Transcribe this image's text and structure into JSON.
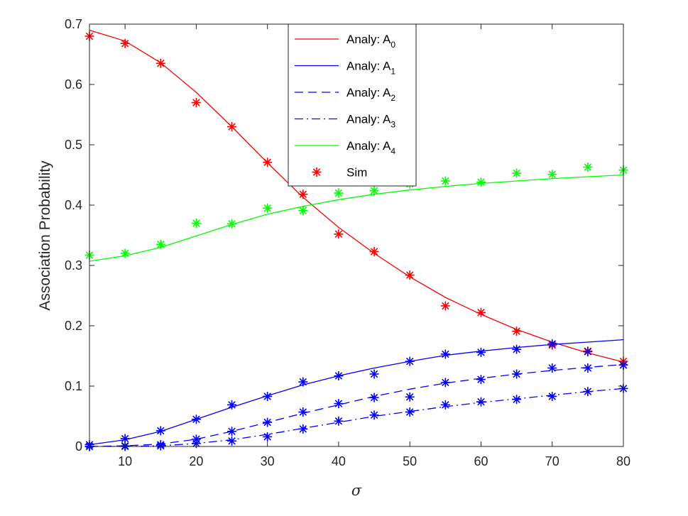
{
  "chart_data": {
    "type": "line",
    "xlabel": "σ",
    "ylabel": "Association Probability",
    "xlim": [
      5,
      80
    ],
    "ylim": [
      0,
      0.7
    ],
    "xticks": [
      10,
      20,
      30,
      40,
      50,
      60,
      70,
      80
    ],
    "yticks": [
      0,
      0.1,
      0.2,
      0.3,
      0.4,
      0.5,
      0.6,
      0.7
    ],
    "grid": false,
    "legend_position": "top-center",
    "x": [
      5,
      10,
      15,
      20,
      25,
      30,
      35,
      40,
      45,
      50,
      55,
      60,
      65,
      70,
      75,
      80
    ],
    "series": [
      {
        "name": "Analy: A",
        "sub": "0",
        "color": "#ff0000",
        "dash": "solid",
        "values": [
          0.69,
          0.672,
          0.636,
          0.587,
          0.53,
          0.47,
          0.413,
          0.363,
          0.32,
          0.281,
          0.247,
          0.219,
          0.194,
          0.173,
          0.155,
          0.14
        ]
      },
      {
        "name": "Analy: A",
        "sub": "1",
        "color": "#0000ff",
        "dash": "solid",
        "values": [
          0.003,
          0.011,
          0.025,
          0.045,
          0.065,
          0.084,
          0.102,
          0.117,
          0.13,
          0.141,
          0.151,
          0.158,
          0.164,
          0.169,
          0.173,
          0.177
        ]
      },
      {
        "name": "Analy: A",
        "sub": "2",
        "color": "#0000ff",
        "dash": "dashed",
        "values": [
          0.0,
          0.001,
          0.004,
          0.012,
          0.025,
          0.04,
          0.055,
          0.069,
          0.083,
          0.095,
          0.105,
          0.113,
          0.12,
          0.126,
          0.131,
          0.136
        ]
      },
      {
        "name": "Analy: A",
        "sub": "3",
        "color": "#0000ff",
        "dash": "dashdot",
        "values": [
          0.0,
          0.0,
          0.001,
          0.005,
          0.011,
          0.02,
          0.03,
          0.04,
          0.05,
          0.058,
          0.066,
          0.073,
          0.079,
          0.085,
          0.091,
          0.096
        ]
      },
      {
        "name": "Analy: A",
        "sub": "4",
        "color": "#00ff00",
        "dash": "solid",
        "values": [
          0.307,
          0.316,
          0.33,
          0.349,
          0.368,
          0.385,
          0.398,
          0.409,
          0.418,
          0.425,
          0.431,
          0.436,
          0.44,
          0.444,
          0.447,
          0.45
        ]
      }
    ],
    "sim": [
      {
        "color": "#ff0000",
        "values": [
          0.68,
          0.668,
          0.635,
          0.57,
          0.53,
          0.471,
          0.418,
          0.352,
          0.323,
          0.284,
          0.233,
          0.222,
          0.191,
          0.168,
          0.158,
          0.141
        ]
      },
      {
        "color": "#0000ff",
        "values": [
          0.003,
          0.013,
          0.026,
          0.045,
          0.069,
          0.083,
          0.107,
          0.117,
          0.12,
          0.141,
          0.153,
          0.156,
          0.161,
          0.17,
          0.157,
          0.135
        ]
      },
      {
        "color": "#0000ff",
        "values": [
          0.0,
          0.001,
          0.003,
          0.012,
          0.025,
          0.04,
          0.057,
          0.071,
          0.081,
          0.082,
          0.106,
          0.111,
          0.12,
          0.13,
          0.13,
          0.135
        ]
      },
      {
        "color": "#0000ff",
        "values": [
          0.0,
          0.0,
          0.001,
          0.005,
          0.009,
          0.016,
          0.029,
          0.042,
          0.052,
          0.057,
          0.069,
          0.074,
          0.078,
          0.083,
          0.091,
          0.096
        ]
      },
      {
        "color": "#00ff00",
        "values": [
          0.317,
          0.32,
          0.335,
          0.37,
          0.369,
          0.395,
          0.391,
          0.42,
          0.424,
          0.435,
          0.44,
          0.438,
          0.453,
          0.451,
          0.463,
          0.458
        ]
      }
    ],
    "sim_legend": {
      "name": "Sim",
      "color": "#ff0000"
    }
  }
}
